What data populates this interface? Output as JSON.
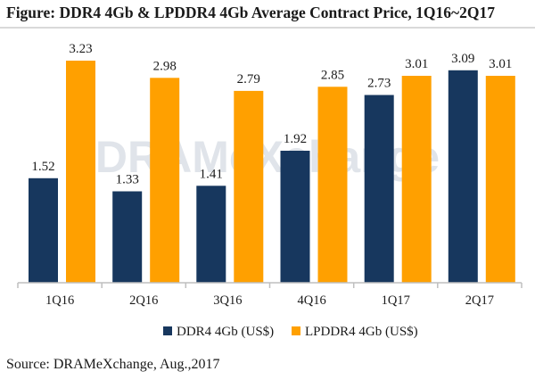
{
  "chart_data": {
    "type": "bar",
    "title": "Figure: DDR4 4Gb & LPDDR4 4Gb Average Contract Price, 1Q16~2Q17",
    "categories": [
      "1Q16",
      "2Q16",
      "3Q16",
      "4Q16",
      "1Q17",
      "2Q17"
    ],
    "series": [
      {
        "name": "DDR4 4Gb (US$)",
        "color": "#17375e",
        "values": [
          1.52,
          1.33,
          1.41,
          1.92,
          2.73,
          3.09
        ]
      },
      {
        "name": "LPDDR4 4Gb (US$)",
        "color": "#ffa000",
        "values": [
          3.23,
          2.98,
          2.79,
          2.85,
          3.01,
          3.01
        ]
      }
    ],
    "ylim": [
      0,
      3.23
    ],
    "grid": false,
    "legend": "bottom-center",
    "xlabel": "",
    "ylabel": "",
    "watermark": "DRAMeXchange"
  },
  "source": "Source: DRAMeXchange, Aug.,2017",
  "colors": {
    "axis": "#bfbfbf",
    "rule": "#d9d9d9"
  }
}
